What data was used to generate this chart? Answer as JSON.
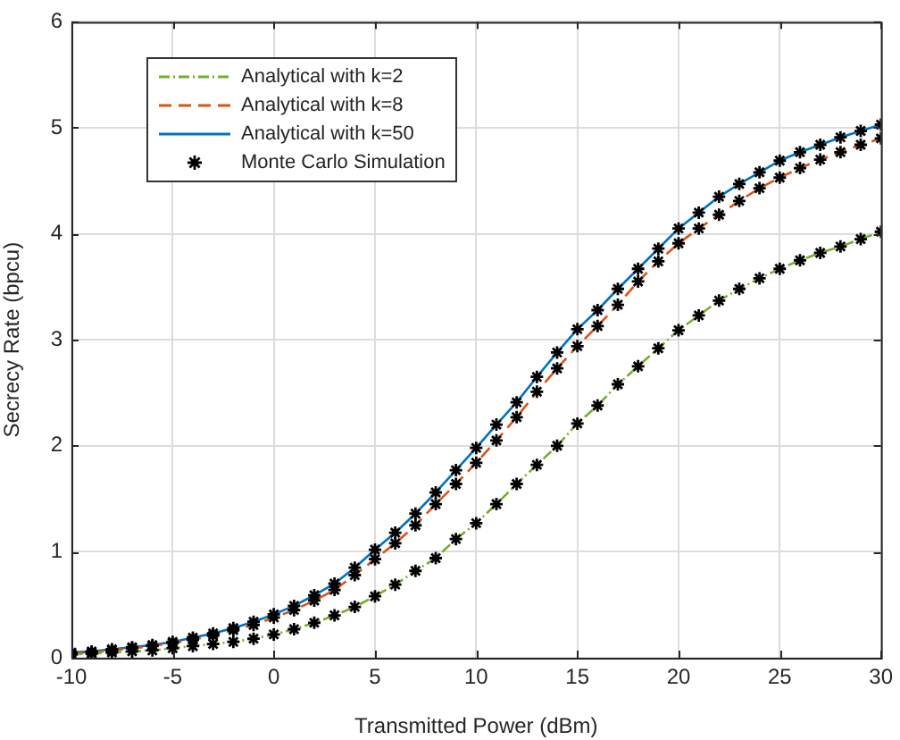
{
  "chart_data": {
    "type": "line",
    "xlabel": "Transmitted Power (dBm)",
    "ylabel": "Secrecy Rate (bpcu)",
    "x": [
      -10,
      -9,
      -8,
      -7,
      -6,
      -5,
      -4,
      -3,
      -2,
      -1,
      0,
      1,
      2,
      3,
      4,
      5,
      6,
      7,
      8,
      9,
      10,
      11,
      12,
      13,
      14,
      15,
      16,
      17,
      18,
      19,
      20,
      21,
      22,
      23,
      24,
      25,
      26,
      27,
      28,
      29,
      30
    ],
    "series": [
      {
        "name": "Analytical with k=2",
        "color": "#77ac30",
        "line_style": "dotted",
        "values": [
          0.03,
          0.04,
          0.05,
          0.06,
          0.07,
          0.09,
          0.11,
          0.13,
          0.15,
          0.18,
          0.22,
          0.27,
          0.33,
          0.4,
          0.48,
          0.58,
          0.69,
          0.82,
          0.94,
          1.12,
          1.27,
          1.45,
          1.64,
          1.82,
          2.0,
          2.21,
          2.38,
          2.58,
          2.75,
          2.92,
          3.09,
          3.23,
          3.37,
          3.48,
          3.58,
          3.67,
          3.75,
          3.82,
          3.88,
          3.95,
          4.02
        ]
      },
      {
        "name": "Analytical with k=8",
        "color": "#d95319",
        "line_style": "dashed",
        "values": [
          0.04,
          0.05,
          0.07,
          0.09,
          0.11,
          0.14,
          0.17,
          0.21,
          0.26,
          0.31,
          0.38,
          0.45,
          0.54,
          0.64,
          0.78,
          0.93,
          1.08,
          1.25,
          1.45,
          1.64,
          1.84,
          2.05,
          2.27,
          2.51,
          2.73,
          2.94,
          3.13,
          3.33,
          3.55,
          3.74,
          3.91,
          4.05,
          4.18,
          4.31,
          4.43,
          4.53,
          4.62,
          4.7,
          4.77,
          4.84,
          4.9
        ]
      },
      {
        "name": "Analytical with k=50",
        "color": "#0072bd",
        "line_style": "solid",
        "values": [
          0.05,
          0.06,
          0.08,
          0.1,
          0.12,
          0.15,
          0.19,
          0.23,
          0.28,
          0.34,
          0.41,
          0.49,
          0.59,
          0.7,
          0.85,
          1.02,
          1.18,
          1.36,
          1.56,
          1.77,
          1.98,
          2.2,
          2.41,
          2.65,
          2.88,
          3.1,
          3.28,
          3.48,
          3.67,
          3.86,
          4.05,
          4.2,
          4.35,
          4.47,
          4.58,
          4.69,
          4.77,
          4.84,
          4.91,
          4.97,
          5.03
        ]
      },
      {
        "name": "Monte Carlo Simulation",
        "type": "scatter",
        "color": "#000000",
        "marker": "cross",
        "x": [
          -10,
          -9,
          -8,
          -7,
          -6,
          -5,
          -4,
          -3,
          -2,
          -1,
          0,
          1,
          2,
          3,
          4,
          5,
          6,
          7,
          8,
          9,
          10,
          11,
          12,
          13,
          14,
          15,
          16,
          17,
          18,
          19,
          20,
          21,
          22,
          23,
          24,
          25,
          26,
          27,
          28,
          29,
          30,
          -10,
          -9,
          -8,
          -7,
          -6,
          -5,
          -4,
          -3,
          -2,
          -1,
          0,
          1,
          2,
          3,
          4,
          5,
          6,
          7,
          8,
          9,
          10,
          11,
          12,
          13,
          14,
          15,
          16,
          17,
          18,
          19,
          20,
          21,
          22,
          23,
          24,
          25,
          26,
          27,
          28,
          29,
          30,
          -10,
          -9,
          -8,
          -7,
          -6,
          -5,
          -4,
          -3,
          -2,
          -1,
          0,
          1,
          2,
          3,
          4,
          5,
          6,
          7,
          8,
          9,
          10,
          11,
          12,
          13,
          14,
          15,
          16,
          17,
          18,
          19,
          20,
          21,
          22,
          23,
          24,
          25,
          26,
          27,
          28,
          29,
          30
        ],
        "values": [
          0.03,
          0.04,
          0.05,
          0.06,
          0.07,
          0.09,
          0.11,
          0.13,
          0.15,
          0.18,
          0.22,
          0.27,
          0.33,
          0.4,
          0.48,
          0.58,
          0.69,
          0.82,
          0.94,
          1.12,
          1.27,
          1.45,
          1.64,
          1.82,
          2.0,
          2.21,
          2.38,
          2.58,
          2.75,
          2.92,
          3.09,
          3.23,
          3.37,
          3.48,
          3.58,
          3.67,
          3.75,
          3.82,
          3.88,
          3.95,
          4.02,
          0.04,
          0.05,
          0.07,
          0.09,
          0.11,
          0.14,
          0.17,
          0.21,
          0.26,
          0.31,
          0.38,
          0.45,
          0.54,
          0.64,
          0.78,
          0.93,
          1.08,
          1.25,
          1.45,
          1.64,
          1.84,
          2.05,
          2.27,
          2.51,
          2.73,
          2.94,
          3.13,
          3.33,
          3.55,
          3.74,
          3.91,
          4.05,
          4.18,
          4.31,
          4.43,
          4.53,
          4.62,
          4.7,
          4.77,
          4.84,
          4.9,
          0.05,
          0.06,
          0.08,
          0.1,
          0.12,
          0.15,
          0.19,
          0.23,
          0.28,
          0.34,
          0.41,
          0.49,
          0.59,
          0.7,
          0.85,
          1.02,
          1.18,
          1.36,
          1.56,
          1.77,
          1.98,
          2.2,
          2.41,
          2.65,
          2.88,
          3.1,
          3.28,
          3.48,
          3.67,
          3.86,
          4.05,
          4.2,
          4.35,
          4.47,
          4.58,
          4.69,
          4.77,
          4.84,
          4.91,
          4.97,
          5.03
        ]
      }
    ],
    "xlim": [
      -10,
      30
    ],
    "xticks": [
      -10,
      -5,
      0,
      5,
      10,
      15,
      20,
      25,
      30
    ],
    "ylim": [
      0,
      6
    ],
    "yticks": [
      0,
      1,
      2,
      3,
      4,
      5,
      6
    ],
    "grid": true,
    "legend": "top left",
    "marker": "none"
  }
}
